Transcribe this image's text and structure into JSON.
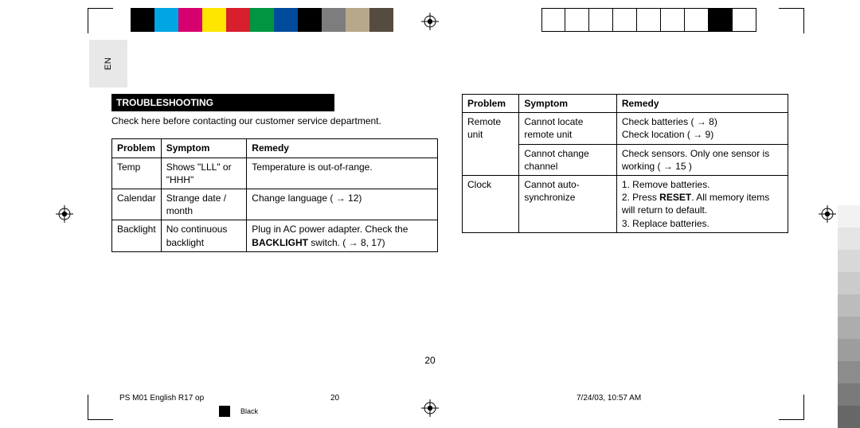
{
  "lang_tab": "EN",
  "section_title": "TROUBLESHOOTING",
  "intro": "Check here before contacting our customer service department.",
  "table_headers": {
    "problem": "Problem",
    "symptom": "Symptom",
    "remedy": "Remedy"
  },
  "left_table": [
    {
      "problem": "Temp",
      "symptom": "Shows \"LLL\" or \"HHH\"",
      "remedy": "Temperature is out-of-range."
    },
    {
      "problem": "Calendar",
      "symptom": "Strange date / month",
      "remedy": "Change language ( → 12)"
    },
    {
      "problem": "Backlight",
      "symptom": "No continuous backlight",
      "remedy_pre": "Plug in AC power adapter. Check the ",
      "remedy_bold": "BACKLIGHT",
      "remedy_post": " switch. ( → 8, 17)"
    }
  ],
  "right_table": [
    {
      "problem": "Remote unit",
      "problem_rowspan": 2,
      "symptom": "Cannot locate remote unit",
      "remedy": "Check batteries ( → 8)\nCheck location ( → 9)"
    },
    {
      "symptom": "Cannot change channel",
      "remedy": "Check sensors. Only one sensor is working ( → 15 )"
    },
    {
      "problem": "Clock",
      "symptom": "Cannot auto-synchronize",
      "remedy_list": [
        "Remove batteries.",
        {
          "pre": "Press ",
          "bold": "RESET",
          "post": ". All memory items will return to default."
        },
        "Replace batteries."
      ]
    }
  ],
  "page_num": "20",
  "footer": {
    "doc": "PS M01 English R17 op",
    "page": "20",
    "datetime": "7/24/03, 10:57 AM",
    "color": "Black"
  },
  "color_bars": {
    "top_left": [
      "#000000",
      "#00a5e3",
      "#d6006f",
      "#ffe600",
      "#d71f2e",
      "#009640",
      "#004b9b",
      "#000000",
      "#7d7d7d",
      "#b8a88a",
      "#554b3e"
    ],
    "top_right_hollow_count": 9,
    "top_right_filled_index": 7,
    "right_side": [
      "#ffffff",
      "#f2f2f2",
      "#e5e5e5",
      "#d8d8d8",
      "#cbcbcb",
      "#bcbcbc",
      "#adadad",
      "#9d9d9d",
      "#8c8c8c",
      "#7a7a7a",
      "#676767"
    ]
  }
}
